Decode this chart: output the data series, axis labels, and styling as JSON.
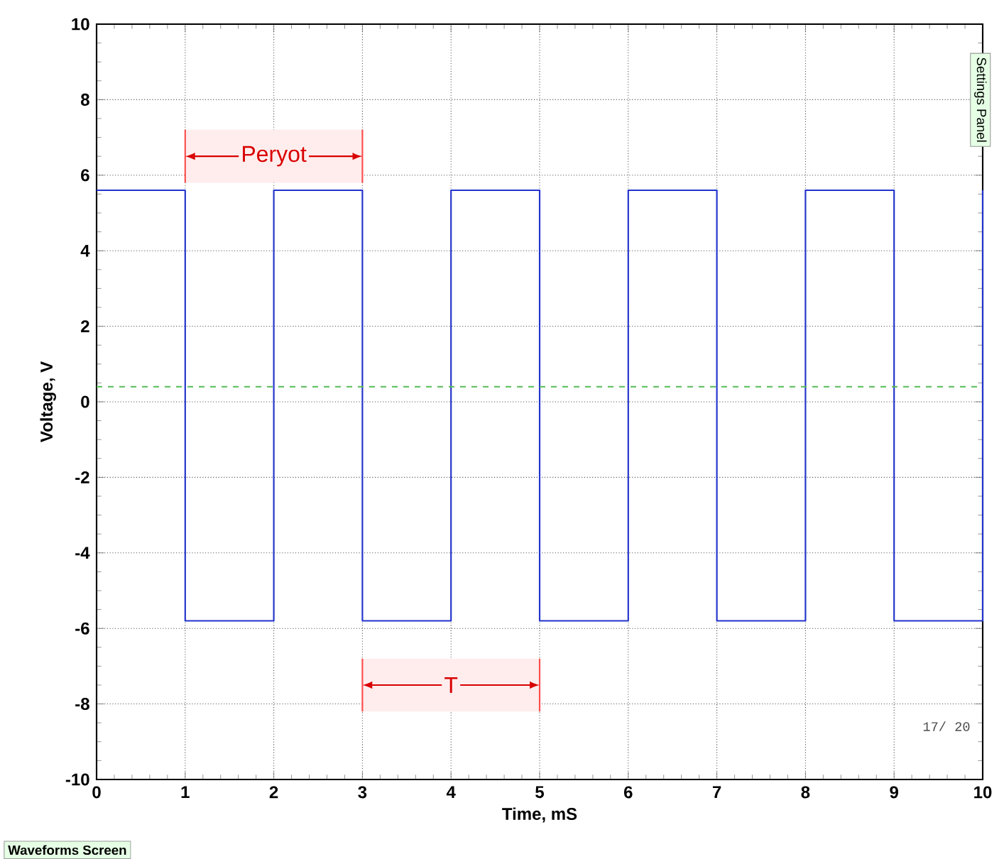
{
  "chart_data": {
    "type": "line",
    "xlabel": "Time, mS",
    "ylabel": "Voltage, V",
    "x": [
      0,
      1,
      1,
      2,
      2,
      3,
      3,
      4,
      4,
      5,
      5,
      6,
      6,
      7,
      7,
      8,
      8,
      9,
      9,
      10,
      10
    ],
    "series": [
      {
        "color": "#2233cc",
        "values": [
          5.6,
          5.6,
          -5.8,
          -5.8,
          5.6,
          5.6,
          -5.8,
          -5.8,
          5.6,
          5.6,
          -5.8,
          -5.8,
          5.6,
          5.6,
          -5.8,
          -5.8,
          5.6,
          5.6,
          -5.8,
          -5.8,
          5.6
        ]
      }
    ],
    "xlim": [
      0,
      10
    ],
    "ylim": [
      -10,
      10
    ],
    "xticks": [
      0,
      1,
      2,
      3,
      4,
      5,
      6,
      7,
      8,
      9,
      10
    ],
    "yticks": [
      -10,
      -8,
      -6,
      -4,
      -2,
      0,
      2,
      4,
      6,
      8,
      10
    ],
    "grid": true,
    "line_style": "solid",
    "marker": "none",
    "ref_lines": [
      {
        "axis": "y",
        "value": 0.4,
        "color": "#55bb55",
        "line_style": "dashed"
      }
    ],
    "bands": [
      {
        "axis": "x",
        "from": 1,
        "to": 3,
        "label": "Peryot"
      },
      {
        "axis": "x",
        "from": 3,
        "to": 5,
        "label": "T"
      }
    ],
    "annotations": [
      "17/ 20",
      "Waveforms Screen",
      "Settings Panel"
    ]
  }
}
